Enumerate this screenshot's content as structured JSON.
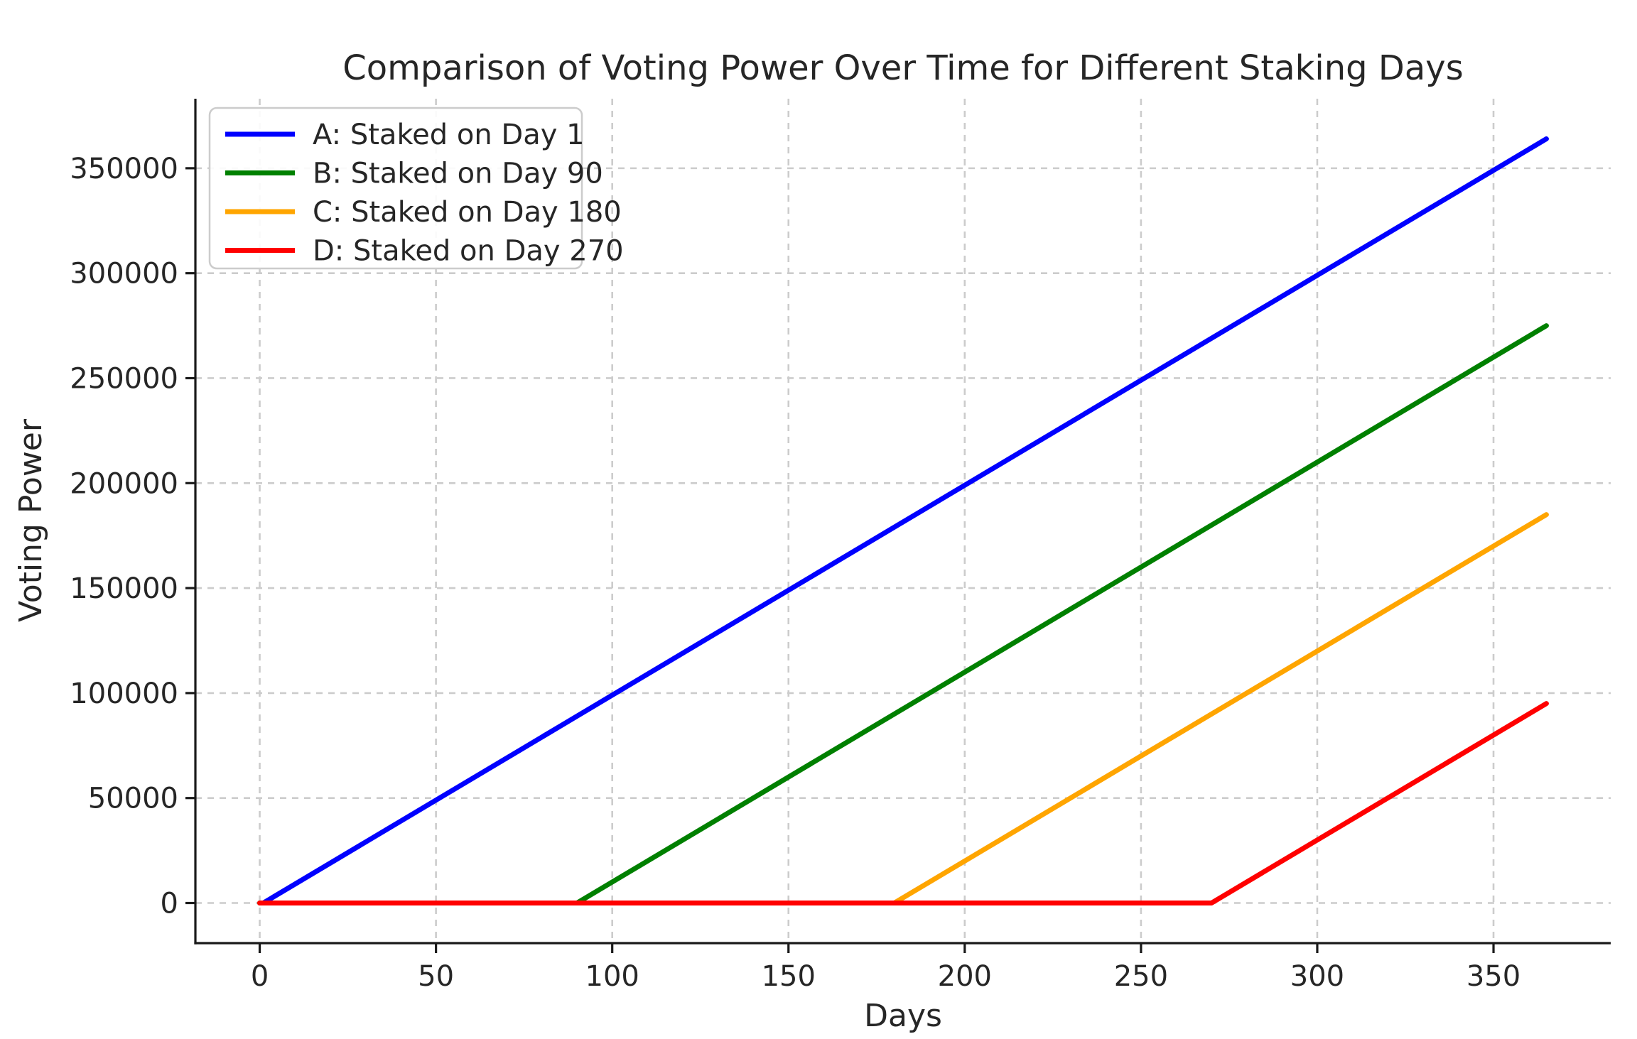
{
  "chart_data": {
    "type": "line",
    "title": "Comparison of Voting Power Over Time for Different Staking Days",
    "xlabel": "Days",
    "ylabel": "Voting Power",
    "xlim": [
      -18.25,
      383.25
    ],
    "ylim": [
      -19110,
      383110
    ],
    "x_ticks": [
      0,
      50,
      100,
      150,
      200,
      250,
      300,
      350
    ],
    "y_ticks": [
      0,
      50000,
      100000,
      150000,
      200000,
      250000,
      300000,
      350000
    ],
    "grid": "both-dashed",
    "legend_position": "upper-left",
    "series": [
      {
        "name": "A: Staked on Day 1",
        "color": "#0000ff",
        "stake_day": 1,
        "points": [
          [
            0,
            0
          ],
          [
            1,
            0
          ],
          [
            365,
            364000
          ]
        ]
      },
      {
        "name": "B: Staked on Day 90",
        "color": "#008000",
        "stake_day": 90,
        "points": [
          [
            0,
            0
          ],
          [
            90,
            0
          ],
          [
            365,
            275000
          ]
        ]
      },
      {
        "name": "C: Staked on Day 180",
        "color": "#ffa500",
        "stake_day": 180,
        "points": [
          [
            0,
            0
          ],
          [
            180,
            0
          ],
          [
            365,
            185000
          ]
        ]
      },
      {
        "name": "D: Staked on Day 270",
        "color": "#ff0000",
        "stake_day": 270,
        "points": [
          [
            0,
            0
          ],
          [
            270,
            0
          ],
          [
            365,
            95000
          ]
        ]
      }
    ]
  },
  "styles": {
    "background": "#ffffff",
    "grid_color": "#cccccc",
    "axis_color": "#1a1a1a",
    "text_color": "#262626",
    "legend_border_color": "#cccccc",
    "legend_background": "#ffffff"
  }
}
